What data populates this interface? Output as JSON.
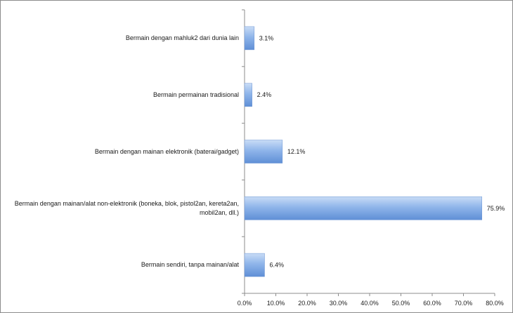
{
  "chart_data": {
    "type": "bar",
    "orientation": "horizontal",
    "categories": [
      "Bermain dengan mahluk2 dari dunia lain",
      "Bermain permainan tradisional",
      "Bermain dengan mainan elektronik (baterai/gadget)",
      "Bermain dengan mainan/alat non-elektronik (boneka, blok, pistol2an, kereta2an, mobil2an, dll.)",
      "Bermain sendiri, tanpa mainan/alat"
    ],
    "category_lines": [
      [
        "Bermain dengan mahluk2 dari dunia lain"
      ],
      [
        "Bermain permainan tradisional"
      ],
      [
        "Bermain dengan mainan elektronik (baterai/gadget)"
      ],
      [
        "Bermain dengan mainan/alat non-elektronik (boneka, blok, pistol2an, kereta2an,",
        "mobil2an, dll.)"
      ],
      [
        "Bermain sendiri, tanpa mainan/alat"
      ]
    ],
    "values": [
      3.1,
      2.4,
      12.1,
      75.9,
      6.4
    ],
    "data_labels": [
      "3.1%",
      "2.4%",
      "12.1%",
      "75.9%",
      "6.4%"
    ],
    "xlim": [
      0,
      80
    ],
    "x_ticks": [
      "0.0%",
      "10.0%",
      "20.0%",
      "30.0%",
      "40.0%",
      "50.0%",
      "60.0%",
      "70.0%",
      "80.0%"
    ],
    "grid": false,
    "bar_color": "#7ea9e6"
  }
}
